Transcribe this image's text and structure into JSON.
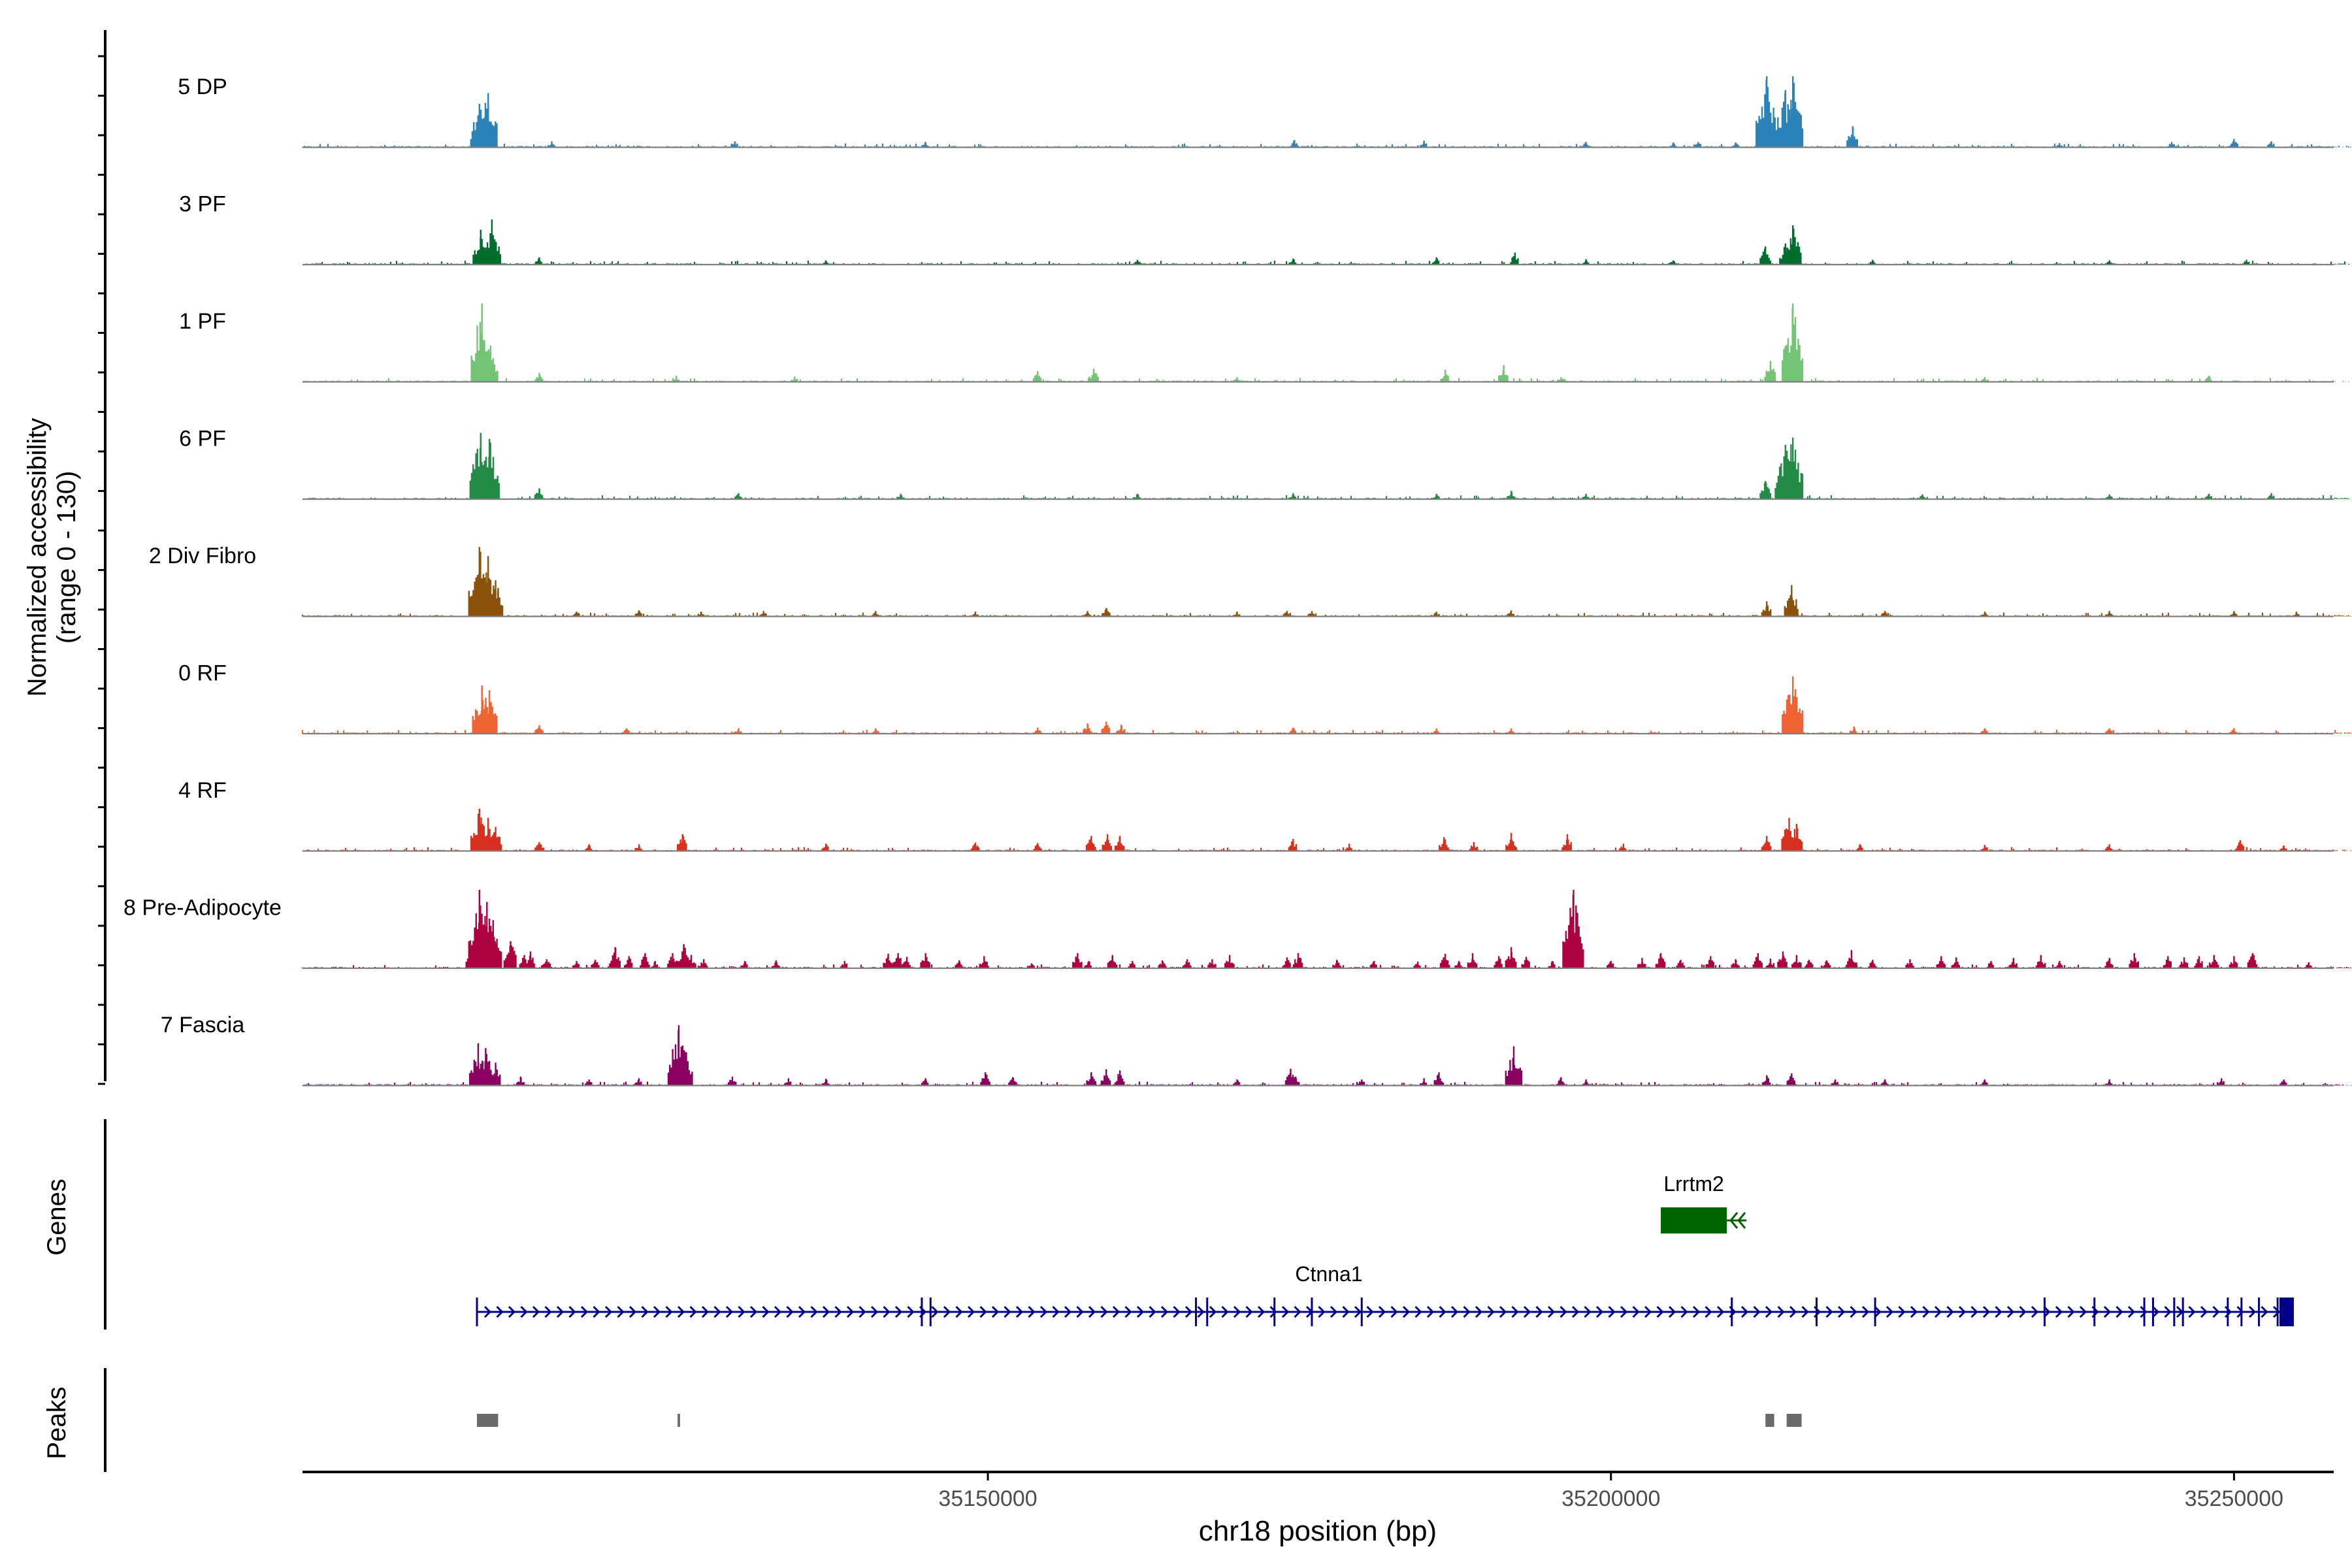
{
  "chart_data": {
    "type": "coverage",
    "title": "",
    "ylabel_line1": "Normalized accessibility",
    "ylabel_line2": "(range 0 - 130)",
    "genes_label": "Genes",
    "peaks_label": "Peaks",
    "xlabel": "chr18 position (bp)",
    "xlim": [
      35095000,
      35258000
    ],
    "coverage_xlim": [
      35095000,
      35261000
    ],
    "ylim": [
      0,
      130
    ],
    "x_ticks": [
      {
        "value": 35150000,
        "label": "35150000"
      },
      {
        "value": 35200000,
        "label": "35200000"
      },
      {
        "value": 35250000,
        "label": "35250000"
      }
    ],
    "tracks": [
      {
        "name": "5 DP",
        "color": "#2b83ba",
        "peaks": [
          [
            35109200,
            72
          ],
          [
            35109900,
            90
          ],
          [
            35115000,
            10
          ],
          [
            35129700,
            10
          ],
          [
            35145000,
            9
          ],
          [
            35174600,
            12
          ],
          [
            35185000,
            11
          ],
          [
            35198000,
            9
          ],
          [
            35205000,
            8
          ],
          [
            35207000,
            9
          ],
          [
            35210000,
            8
          ],
          [
            35212500,
            118
          ],
          [
            35214000,
            95
          ],
          [
            35214600,
            118
          ],
          [
            35219400,
            35
          ],
          [
            35236000,
            7
          ],
          [
            35245000,
            9
          ],
          [
            35250000,
            14
          ],
          [
            35253000,
            10
          ]
        ]
      },
      {
        "name": "3 PF",
        "color": "#006d2c",
        "peaks": [
          [
            35109300,
            58
          ],
          [
            35110200,
            75
          ],
          [
            35114000,
            12
          ],
          [
            35137000,
            7
          ],
          [
            35162000,
            8
          ],
          [
            35174500,
            10
          ],
          [
            35186000,
            12
          ],
          [
            35192300,
            20
          ],
          [
            35198000,
            9
          ],
          [
            35205000,
            7
          ],
          [
            35212400,
            30
          ],
          [
            35214000,
            35
          ],
          [
            35214600,
            65
          ],
          [
            35221000,
            8
          ],
          [
            35240000,
            7
          ],
          [
            35251000,
            8
          ]
        ]
      },
      {
        "name": "1 PF",
        "color": "#74c476",
        "peaks": [
          [
            35109400,
            130
          ],
          [
            35110100,
            60
          ],
          [
            35114000,
            15
          ],
          [
            35125000,
            10
          ],
          [
            35134500,
            9
          ],
          [
            35154000,
            18
          ],
          [
            35158500,
            22
          ],
          [
            35170000,
            8
          ],
          [
            35186700,
            20
          ],
          [
            35191400,
            28
          ],
          [
            35196000,
            8
          ],
          [
            35212800,
            35
          ],
          [
            35214600,
            130
          ],
          [
            35230000,
            8
          ],
          [
            35248000,
            10
          ]
        ]
      },
      {
        "name": "6 PF",
        "color": "#238b45",
        "peaks": [
          [
            35109300,
            110
          ],
          [
            35110000,
            100
          ],
          [
            35114000,
            18
          ],
          [
            35130000,
            10
          ],
          [
            35143000,
            9
          ],
          [
            35162000,
            9
          ],
          [
            35174500,
            10
          ],
          [
            35186000,
            9
          ],
          [
            35192000,
            14
          ],
          [
            35198000,
            9
          ],
          [
            35212400,
            30
          ],
          [
            35214000,
            90
          ],
          [
            35214600,
            102
          ],
          [
            35225000,
            8
          ],
          [
            35240000,
            8
          ],
          [
            35248000,
            9
          ],
          [
            35253000,
            10
          ]
        ]
      },
      {
        "name": "2 Div Fibro",
        "color": "#8c510a",
        "peaks": [
          [
            35109200,
            115
          ],
          [
            35109900,
            100
          ],
          [
            35110500,
            60
          ],
          [
            35117000,
            8
          ],
          [
            35122000,
            10
          ],
          [
            35127000,
            8
          ],
          [
            35132000,
            9
          ],
          [
            35141000,
            9
          ],
          [
            35149000,
            8
          ],
          [
            35158000,
            9
          ],
          [
            35159500,
            14
          ],
          [
            35170000,
            8
          ],
          [
            35174000,
            9
          ],
          [
            35176000,
            9
          ],
          [
            35186000,
            8
          ],
          [
            35192000,
            10
          ],
          [
            35212500,
            25
          ],
          [
            35214500,
            52
          ],
          [
            35222000,
            9
          ],
          [
            35230000,
            8
          ],
          [
            35240000,
            9
          ],
          [
            35250000,
            9
          ],
          [
            35255000,
            8
          ]
        ]
      },
      {
        "name": "0 RF",
        "color": "#ef6232",
        "peaks": [
          [
            35109400,
            80
          ],
          [
            35110000,
            72
          ],
          [
            35114000,
            14
          ],
          [
            35121000,
            9
          ],
          [
            35130000,
            9
          ],
          [
            35141000,
            9
          ],
          [
            35154000,
            10
          ],
          [
            35158000,
            17
          ],
          [
            35159500,
            20
          ],
          [
            35160700,
            15
          ],
          [
            35174500,
            10
          ],
          [
            35186000,
            9
          ],
          [
            35192000,
            9
          ],
          [
            35214600,
            95
          ],
          [
            35219500,
            12
          ],
          [
            35230000,
            9
          ],
          [
            35240000,
            9
          ],
          [
            35250000,
            9
          ]
        ]
      },
      {
        "name": "4 RF",
        "color": "#d7301f",
        "peaks": [
          [
            35109200,
            70
          ],
          [
            35109900,
            55
          ],
          [
            35110500,
            40
          ],
          [
            35114000,
            15
          ],
          [
            35118000,
            11
          ],
          [
            35122000,
            11
          ],
          [
            35125500,
            28
          ],
          [
            35137000,
            12
          ],
          [
            35149000,
            14
          ],
          [
            35154000,
            13
          ],
          [
            35158300,
            25
          ],
          [
            35159600,
            28
          ],
          [
            35160600,
            25
          ],
          [
            35174500,
            20
          ],
          [
            35179000,
            12
          ],
          [
            35186600,
            23
          ],
          [
            35189000,
            15
          ],
          [
            35192000,
            30
          ],
          [
            35196500,
            28
          ],
          [
            35201000,
            12
          ],
          [
            35212500,
            25
          ],
          [
            35214300,
            55
          ],
          [
            35214900,
            45
          ],
          [
            35220000,
            11
          ],
          [
            35230000,
            10
          ],
          [
            35240000,
            11
          ],
          [
            35250500,
            18
          ],
          [
            35254000,
            9
          ]
        ]
      },
      {
        "name": "8 Pre-Adipocyte",
        "color": "#ae0141",
        "peaks": [
          [
            35108600,
            38
          ],
          [
            35109200,
            130
          ],
          [
            35109800,
            110
          ],
          [
            35110300,
            80
          ],
          [
            35111700,
            45
          ],
          [
            35112800,
            22
          ],
          [
            35113300,
            28
          ],
          [
            35114600,
            15
          ],
          [
            35117000,
            12
          ],
          [
            35118500,
            14
          ],
          [
            35120100,
            35
          ],
          [
            35121200,
            20
          ],
          [
            35122500,
            25
          ],
          [
            35123300,
            12
          ],
          [
            35124700,
            25
          ],
          [
            35125600,
            40
          ],
          [
            35126200,
            22
          ],
          [
            35127200,
            15
          ],
          [
            35130500,
            12
          ],
          [
            35133000,
            13
          ],
          [
            35138500,
            12
          ],
          [
            35142000,
            24
          ],
          [
            35142800,
            25
          ],
          [
            35143500,
            19
          ],
          [
            35145000,
            25
          ],
          [
            35147700,
            13
          ],
          [
            35149700,
            20
          ],
          [
            35153500,
            8
          ],
          [
            35157200,
            25
          ],
          [
            35158100,
            12
          ],
          [
            35160000,
            22
          ],
          [
            35161600,
            12
          ],
          [
            35164000,
            13
          ],
          [
            35166000,
            15
          ],
          [
            35168000,
            15
          ],
          [
            35169400,
            22
          ],
          [
            35174000,
            18
          ],
          [
            35174900,
            25
          ],
          [
            35178000,
            14
          ],
          [
            35181000,
            12
          ],
          [
            35184500,
            11
          ],
          [
            35186700,
            24
          ],
          [
            35187800,
            12
          ],
          [
            35188900,
            25
          ],
          [
            35191000,
            20
          ],
          [
            35192000,
            35
          ],
          [
            35193200,
            19
          ],
          [
            35195300,
            12
          ],
          [
            35197000,
            130
          ],
          [
            35200000,
            12
          ],
          [
            35202500,
            17
          ],
          [
            35204000,
            25
          ],
          [
            35205600,
            14
          ],
          [
            35208000,
            20
          ],
          [
            35210000,
            15
          ],
          [
            35211800,
            25
          ],
          [
            35212800,
            16
          ],
          [
            35213800,
            28
          ],
          [
            35214900,
            22
          ],
          [
            35215900,
            14
          ],
          [
            35217300,
            13
          ],
          [
            35219300,
            30
          ],
          [
            35221000,
            14
          ],
          [
            35224000,
            15
          ],
          [
            35226500,
            20
          ],
          [
            35227700,
            18
          ],
          [
            35230500,
            12
          ],
          [
            35232300,
            17
          ],
          [
            35234500,
            22
          ],
          [
            35236000,
            12
          ],
          [
            35240000,
            17
          ],
          [
            35242000,
            25
          ],
          [
            35244700,
            20
          ],
          [
            35246000,
            18
          ],
          [
            35247200,
            20
          ],
          [
            35248400,
            22
          ],
          [
            35250000,
            20
          ],
          [
            35251500,
            25
          ],
          [
            35256000,
            10
          ]
        ]
      },
      {
        "name": "7 Fascia",
        "color": "#8b0161",
        "peaks": [
          [
            35109100,
            70
          ],
          [
            35109700,
            62
          ],
          [
            35110500,
            38
          ],
          [
            35112500,
            15
          ],
          [
            35118000,
            10
          ],
          [
            35122000,
            12
          ],
          [
            35125200,
            100
          ],
          [
            35125800,
            55
          ],
          [
            35129500,
            15
          ],
          [
            35134000,
            12
          ],
          [
            35137000,
            11
          ],
          [
            35145000,
            12
          ],
          [
            35149800,
            22
          ],
          [
            35152000,
            14
          ],
          [
            35158300,
            22
          ],
          [
            35159500,
            27
          ],
          [
            35160600,
            25
          ],
          [
            35170000,
            10
          ],
          [
            35174300,
            28
          ],
          [
            35174700,
            15
          ],
          [
            35180000,
            10
          ],
          [
            35185000,
            12
          ],
          [
            35186200,
            22
          ],
          [
            35192200,
            65
          ],
          [
            35196000,
            14
          ],
          [
            35198000,
            10
          ],
          [
            35212500,
            17
          ],
          [
            35214500,
            20
          ],
          [
            35218000,
            10
          ],
          [
            35222000,
            10
          ],
          [
            35230000,
            10
          ],
          [
            35240000,
            10
          ],
          [
            35249000,
            12
          ],
          [
            35254000,
            10
          ]
        ]
      }
    ],
    "genes": [
      {
        "name": "Lrrtm2",
        "start": 35204000,
        "end": 35209300,
        "strand": "-",
        "color": "#006400",
        "type": "block"
      },
      {
        "name": "Ctnna1",
        "start": 35109000,
        "end": 35254800,
        "strand": "+",
        "color": "#00008b",
        "type": "multi-exon",
        "exons": [
          35109000,
          35144700,
          35145400,
          35166700,
          35167600,
          35173000,
          35176000,
          35180000,
          35209700,
          35216500,
          35221200,
          35234800,
          35238800,
          35242800,
          35243500,
          35245200,
          35245900,
          35249500,
          35250600,
          35252000,
          35253500,
          35253900,
          35254200,
          35254500
        ]
      }
    ],
    "peaks_track": [
      {
        "start": 35109000,
        "end": 35110700
      },
      {
        "start": 35125100,
        "end": 35125300
      },
      {
        "start": 35212400,
        "end": 35213100
      },
      {
        "start": 35214100,
        "end": 35215300
      }
    ],
    "colors": {
      "axis": "#000000",
      "baseline": "#7f7f7f",
      "tick_text": "#4d4d4d",
      "peak_box": "#6b6b6b"
    }
  }
}
